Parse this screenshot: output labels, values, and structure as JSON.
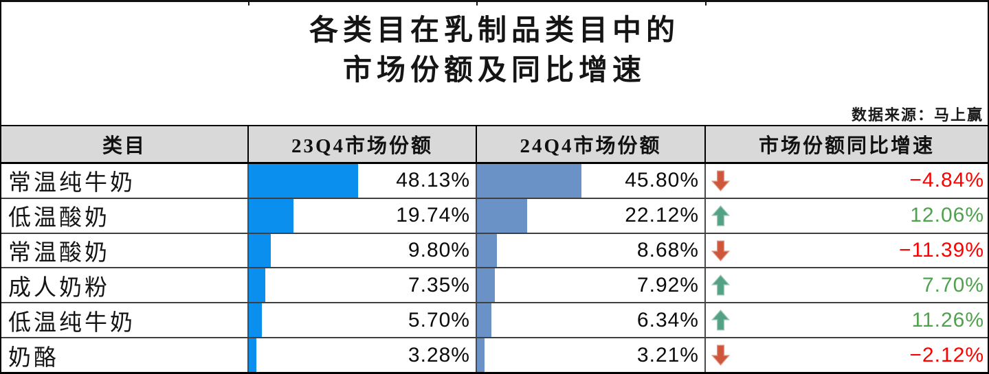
{
  "title": {
    "line1": "各类目在乳制品类目中的",
    "line2": "市场份额及同比增速"
  },
  "source": "数据来源：马上赢",
  "table": {
    "headers": [
      "类目",
      "23Q4市场份额",
      "24Q4市场份额",
      "市场份额同比增速"
    ],
    "rows": [
      {
        "category": "常温纯牛奶",
        "q23": "48.13%",
        "q23_val": 48.13,
        "q24": "45.80%",
        "q24_val": 45.8,
        "growth": "−4.84%",
        "direction": "down"
      },
      {
        "category": "低温酸奶",
        "q23": "19.74%",
        "q23_val": 19.74,
        "q24": "22.12%",
        "q24_val": 22.12,
        "growth": "12.06%",
        "direction": "up"
      },
      {
        "category": "常温酸奶",
        "q23": "9.80%",
        "q23_val": 9.8,
        "q24": "8.68%",
        "q24_val": 8.68,
        "growth": "−11.39%",
        "direction": "down"
      },
      {
        "category": "成人奶粉",
        "q23": "7.35%",
        "q23_val": 7.35,
        "q24": "7.92%",
        "q24_val": 7.92,
        "growth": "7.70%",
        "direction": "up"
      },
      {
        "category": "低温纯牛奶",
        "q23": "5.70%",
        "q23_val": 5.7,
        "q24": "6.34%",
        "q24_val": 6.34,
        "growth": "11.26%",
        "direction": "up"
      },
      {
        "category": "奶酪",
        "q23": "3.28%",
        "q23_val": 3.28,
        "q24": "3.21%",
        "q24_val": 3.21,
        "growth": "−2.12%",
        "direction": "down"
      }
    ]
  },
  "colors": {
    "bar_23q4": "#0a8fee",
    "bar_24q4": "#6b92c6",
    "up_arrow": "#54a285",
    "up_arrow_halo": "#9cc8b4",
    "down_arrow": "#d0563b",
    "down_arrow_halo": "#e0957f",
    "growth_up_text": "#50a14e",
    "growth_down_text": "#ff0000",
    "header_bg": "#d9d9d9"
  },
  "chart_data": {
    "type": "table",
    "title": "各类目在乳制品类目中的市场份额及同比增速",
    "source": "数据来源：马上赢",
    "columns": [
      "类目",
      "23Q4市场份额",
      "24Q4市场份额",
      "市场份额同比增速"
    ],
    "categories": [
      "常温纯牛奶",
      "低温酸奶",
      "常温酸奶",
      "成人奶粉",
      "低温纯牛奶",
      "奶酪"
    ],
    "series": [
      {
        "name": "23Q4市场份额",
        "unit": "%",
        "values": [
          48.13,
          19.74,
          9.8,
          7.35,
          5.7,
          3.28
        ],
        "bar_scale": [
          0,
          100
        ]
      },
      {
        "name": "24Q4市场份额",
        "unit": "%",
        "values": [
          45.8,
          22.12,
          8.68,
          7.92,
          6.34,
          3.21
        ],
        "bar_scale": [
          0,
          100
        ]
      },
      {
        "name": "市场份额同比增速",
        "unit": "%",
        "values": [
          -4.84,
          12.06,
          -11.39,
          7.7,
          11.26,
          -2.12
        ]
      }
    ],
    "legend": "none",
    "grid": "table-borders"
  }
}
